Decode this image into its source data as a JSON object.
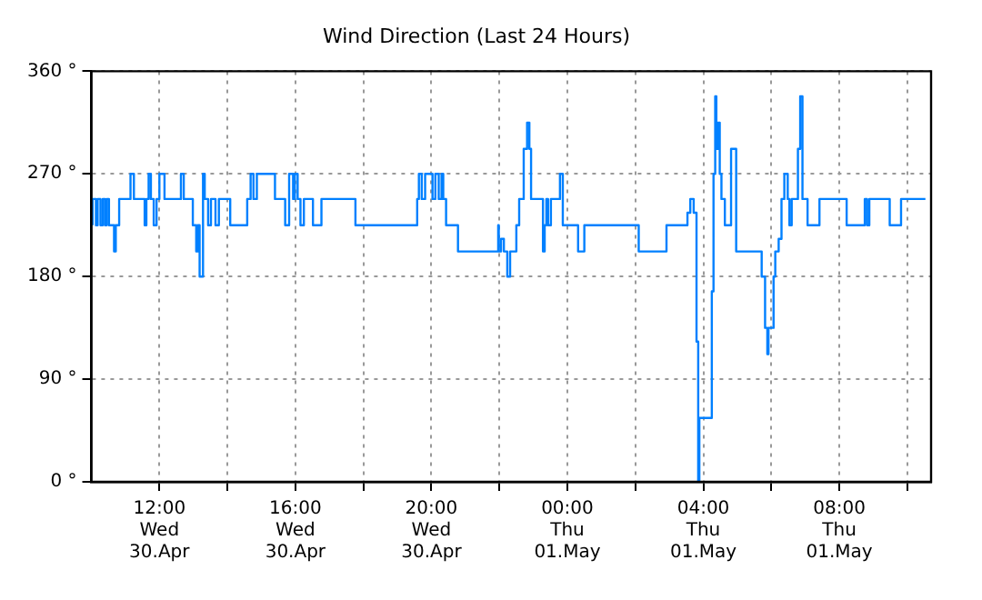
{
  "chart_data": {
    "type": "step",
    "title": "Wind Direction (Last 24 Hours)",
    "xlim": [
      "--04-30T10:00",
      "--05-01T10:42"
    ],
    "xticks": [
      {
        "value": "--04-30T12:00",
        "label": "12:00\nWed\n30.Apr"
      },
      {
        "value": "--04-30T14:00",
        "label": null
      },
      {
        "value": "--04-30T16:00",
        "label": "16:00\nWed\n30.Apr"
      },
      {
        "value": "--04-30T18:00",
        "label": null
      },
      {
        "value": "--04-30T20:00",
        "label": "20:00\nWed\n30.Apr"
      },
      {
        "value": "--04-30T22:00",
        "label": null
      },
      {
        "value": "--05-01T00:00",
        "label": "00:00\nThu\n01.May"
      },
      {
        "value": "--05-01T02:00",
        "label": null
      },
      {
        "value": "--05-01T04:00",
        "label": "04:00\nThu\n01.May"
      },
      {
        "value": "--05-01T06:00",
        "label": null
      },
      {
        "value": "--05-01T08:00",
        "label": "08:00\nThu\n01.May"
      },
      {
        "value": "--05-01T10:00",
        "label": null
      }
    ],
    "ylim": [
      0,
      360
    ],
    "yticks": [
      {
        "value": 0,
        "label": "0 °"
      },
      {
        "value": 90,
        "label": "90 °"
      },
      {
        "value": 180,
        "label": "180 °"
      },
      {
        "value": 270,
        "label": "270 °"
      },
      {
        "value": 360,
        "label": "360 °"
      }
    ],
    "grid": true,
    "legend": false,
    "marker": "none",
    "line_style": "solid",
    "series": [
      {
        "color": "#0080ff",
        "x": [
          "--04-30T10:02",
          "--04-30T10:08",
          "--04-30T10:11",
          "--04-30T10:16",
          "--04-30T10:20",
          "--04-30T10:24",
          "--04-30T10:27",
          "--04-30T10:31",
          "--04-30T10:40",
          "--04-30T10:43",
          "--04-30T10:49",
          "--04-30T11:09",
          "--04-30T11:15",
          "--04-30T11:34",
          "--04-30T11:37",
          "--04-30T11:41",
          "--04-30T11:45",
          "--04-30T11:50",
          "--04-30T11:55",
          "--04-30T12:00",
          "--04-30T12:09",
          "--04-30T12:38",
          "--04-30T12:43",
          "--04-30T12:59",
          "--04-30T13:05",
          "--04-30T13:08",
          "--04-30T13:11",
          "--04-30T13:17",
          "--04-30T13:20",
          "--04-30T13:26",
          "--04-30T13:31",
          "--04-30T13:39",
          "--04-30T13:45",
          "--04-30T14:05",
          "--04-30T14:35",
          "--04-30T14:41",
          "--04-30T14:46",
          "--04-30T14:52",
          "--04-30T15:24",
          "--04-30T15:42",
          "--04-30T15:49",
          "--04-30T15:56",
          "--04-30T15:59",
          "--04-30T16:04",
          "--04-30T16:09",
          "--04-30T16:15",
          "--04-30T16:31",
          "--04-30T16:46",
          "--04-30T17:46",
          "--04-30T19:35",
          "--04-30T19:38",
          "--04-30T19:43",
          "--04-30T19:49",
          "--04-30T20:02",
          "--04-30T20:07",
          "--04-30T20:13",
          "--04-30T20:18",
          "--04-30T20:21",
          "--04-30T20:26",
          "--04-30T20:47",
          "--04-30T21:58",
          "--04-30T21:59",
          "--04-30T22:03",
          "--04-30T22:08",
          "--04-30T22:14",
          "--04-30T22:19",
          "--04-30T22:30",
          "--04-30T22:35",
          "--04-30T22:43",
          "--04-30T22:49",
          "--04-30T22:53",
          "--04-30T22:56",
          "--04-30T23:17",
          "--04-30T23:20",
          "--04-30T23:23",
          "--04-30T23:26",
          "--04-30T23:31",
          "--04-30T23:47",
          "--04-30T23:52",
          "--05-01T00:19",
          "--05-01T00:30",
          "--05-01T02:06",
          "--05-01T02:55",
          "--05-01T03:32",
          "--05-01T03:37",
          "--05-01T03:43",
          "--05-01T03:48",
          "--05-01T03:51",
          "--05-01T03:53",
          "--05-01T04:15",
          "--05-01T04:18",
          "--05-01T04:21",
          "--05-01T04:23",
          "--05-01T04:26",
          "--05-01T04:29",
          "--05-01T04:32",
          "--05-01T04:38",
          "--05-01T04:49",
          "--05-01T04:58",
          "--05-01T05:43",
          "--05-01T05:49",
          "--05-01T05:53",
          "--05-01T05:55",
          "--05-01T06:04",
          "--05-01T06:07",
          "--05-01T06:13",
          "--05-01T06:18",
          "--05-01T06:23",
          "--05-01T06:29",
          "--05-01T06:32",
          "--05-01T06:36",
          "--05-01T06:47",
          "--05-01T06:51",
          "--05-01T06:55",
          "--05-01T07:04",
          "--05-01T07:25",
          "--05-01T08:13",
          "--05-01T08:45",
          "--05-01T08:49",
          "--05-01T08:53",
          "--05-01T09:29",
          "--05-01T09:49",
          "--05-01T09:55",
          "--05-01T10:32"
        ],
        "values": [
          225,
          248,
          225,
          248,
          225,
          248,
          225,
          248,
          225,
          202,
          225,
          248,
          270,
          248,
          225,
          248,
          270,
          248,
          225,
          248,
          270,
          248,
          270,
          248,
          225,
          202,
          225,
          180,
          270,
          248,
          225,
          248,
          225,
          248,
          225,
          248,
          270,
          248,
          270,
          248,
          225,
          270,
          248,
          270,
          248,
          225,
          248,
          225,
          248,
          225,
          248,
          270,
          248,
          270,
          248,
          270,
          248,
          270,
          248,
          225,
          202,
          225,
          202,
          213,
          202,
          180,
          202,
          225,
          248,
          292,
          315,
          292,
          248,
          202,
          225,
          248,
          225,
          248,
          270,
          225,
          202,
          225,
          202,
          225,
          236,
          248,
          236,
          123,
          0,
          56,
          167,
          270,
          338,
          292,
          315,
          270,
          248,
          225,
          292,
          202,
          180,
          135,
          112,
          135,
          180,
          202,
          213,
          248,
          270,
          248,
          225,
          248,
          292,
          338,
          248,
          225,
          248,
          225,
          248,
          225,
          248,
          225,
          248,
          248
        ]
      }
    ]
  }
}
